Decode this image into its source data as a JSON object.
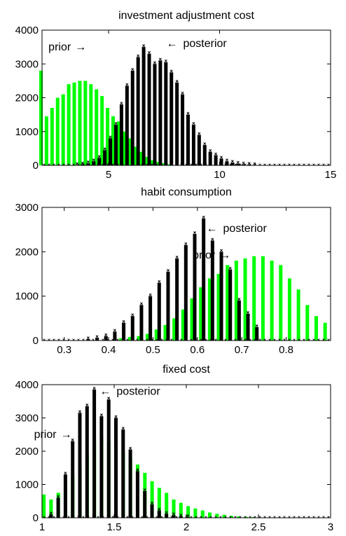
{
  "chart_data": [
    {
      "type": "bar",
      "title": "investment adjustment cost",
      "xlim": [
        2,
        15
      ],
      "ylim": [
        0,
        4000
      ],
      "xticks": [
        "5",
        "10",
        "15"
      ],
      "xtick_values": [
        5,
        10,
        15
      ],
      "yticks": [
        "0",
        "1000",
        "2000",
        "3000",
        "4000"
      ],
      "ytick_values": [
        0,
        1000,
        2000,
        3000,
        4000
      ],
      "annotations": [
        {
          "text": "prior",
          "arrow": "→",
          "at": [
            3.3,
            3400
          ]
        },
        {
          "text": "posterior",
          "arrow": "←",
          "at": [
            7.6,
            3500
          ]
        }
      ],
      "series": [
        {
          "name": "prior",
          "color": "#00ff00",
          "x": [
            2.0,
            2.25,
            2.5,
            2.75,
            3.0,
            3.25,
            3.5,
            3.75,
            4.0,
            4.25,
            4.5,
            4.75,
            5.0,
            5.25,
            5.5,
            5.75,
            6.0,
            6.25,
            6.5,
            6.75,
            7.0,
            7.25,
            7.5,
            7.75,
            8.0
          ],
          "values": [
            2800,
            1450,
            1700,
            2000,
            2100,
            2400,
            2450,
            2500,
            2500,
            2400,
            2250,
            2050,
            1700,
            1450,
            1300,
            1000,
            800,
            550,
            400,
            250,
            150,
            100,
            60,
            30,
            10
          ]
        },
        {
          "name": "posterior",
          "color": "#000000",
          "x": [
            3.5,
            3.75,
            4.0,
            4.25,
            4.5,
            4.75,
            5.0,
            5.25,
            5.5,
            5.75,
            6.0,
            6.25,
            6.5,
            6.75,
            7.0,
            7.25,
            7.5,
            7.75,
            8.0,
            8.25,
            8.5,
            8.75,
            9.0,
            9.25,
            9.5,
            9.75,
            10.0,
            10.25,
            10.5,
            10.75,
            11.0,
            11.25,
            11.5
          ],
          "values": [
            10,
            30,
            60,
            120,
            220,
            450,
            800,
            1200,
            1800,
            2350,
            2800,
            3200,
            3500,
            3300,
            3000,
            3100,
            3050,
            2750,
            2450,
            2100,
            1500,
            1200,
            900,
            600,
            400,
            300,
            200,
            120,
            80,
            50,
            30,
            20,
            10
          ]
        }
      ]
    },
    {
      "type": "bar",
      "title": "habit consumption",
      "xlim": [
        0.25,
        0.9
      ],
      "ylim": [
        0,
        3000
      ],
      "xticks": [
        "0.3",
        "0.4",
        "0.5",
        "0.6",
        "0.7",
        "0.8"
      ],
      "xtick_values": [
        0.3,
        0.4,
        0.5,
        0.6,
        0.7,
        0.8
      ],
      "yticks": [
        "0",
        "1000",
        "2000",
        "3000"
      ],
      "ytick_values": [
        0,
        1000,
        2000,
        3000
      ],
      "annotations": [
        {
          "text": "posterior",
          "arrow": "←",
          "at": [
            0.62,
            2450
          ]
        },
        {
          "text": "prior",
          "arrow": "→",
          "at": [
            0.64,
            1850
          ]
        }
      ],
      "series": [
        {
          "name": "prior",
          "color": "#00ff00",
          "x": [
            0.43,
            0.45,
            0.47,
            0.49,
            0.51,
            0.53,
            0.55,
            0.57,
            0.59,
            0.61,
            0.63,
            0.65,
            0.67,
            0.69,
            0.71,
            0.73,
            0.75,
            0.77,
            0.79,
            0.81,
            0.83,
            0.85,
            0.87,
            0.89
          ],
          "values": [
            50,
            80,
            100,
            150,
            250,
            350,
            500,
            700,
            950,
            1200,
            1400,
            1500,
            1700,
            1800,
            1850,
            1900,
            1900,
            1800,
            1700,
            1400,
            1150,
            800,
            550,
            400
          ]
        },
        {
          "name": "posterior",
          "color": "#000000",
          "x": [
            0.35,
            0.37,
            0.39,
            0.41,
            0.43,
            0.45,
            0.47,
            0.49,
            0.51,
            0.53,
            0.55,
            0.57,
            0.59,
            0.61,
            0.63,
            0.65,
            0.67,
            0.69,
            0.71,
            0.73
          ],
          "values": [
            30,
            60,
            100,
            200,
            400,
            550,
            800,
            1000,
            1300,
            1550,
            1850,
            2150,
            2400,
            2750,
            2250,
            2000,
            1600,
            900,
            600,
            300
          ]
        }
      ]
    },
    {
      "type": "bar",
      "title": "fixed cost",
      "xlim": [
        1,
        3
      ],
      "ylim": [
        0,
        4000
      ],
      "xticks": [
        "1",
        "1.5",
        "2",
        "2.5",
        "3"
      ],
      "xtick_values": [
        1,
        1.5,
        2,
        2.5,
        3
      ],
      "yticks": [
        "0",
        "1000",
        "2000",
        "3000",
        "4000"
      ],
      "ytick_values": [
        0,
        1000,
        2000,
        3000,
        4000
      ],
      "annotations": [
        {
          "text": "posterior",
          "arrow": "←",
          "at": [
            1.4,
            3700
          ]
        },
        {
          "text": "prior",
          "arrow": "→",
          "at": [
            1.1,
            2400
          ]
        }
      ],
      "series": [
        {
          "name": "prior",
          "color": "#00ff00",
          "x": [
            1.02,
            1.07,
            1.12,
            1.17,
            1.22,
            1.27,
            1.32,
            1.37,
            1.42,
            1.47,
            1.52,
            1.57,
            1.62,
            1.67,
            1.72,
            1.77,
            1.82,
            1.87,
            1.92,
            1.97,
            2.02,
            2.07,
            2.12,
            2.17,
            2.22,
            2.27,
            2.32,
            2.37,
            2.42,
            2.47
          ],
          "values": [
            700,
            550,
            750,
            1000,
            1250,
            1550,
            1900,
            2300,
            2400,
            2300,
            2200,
            1950,
            1800,
            1600,
            1350,
            1100,
            900,
            750,
            550,
            450,
            350,
            280,
            220,
            160,
            120,
            90,
            60,
            40,
            30,
            20
          ]
        },
        {
          "name": "posterior",
          "color": "#000000",
          "x": [
            1.05,
            1.1,
            1.15,
            1.2,
            1.25,
            1.3,
            1.35,
            1.4,
            1.45,
            1.5,
            1.55,
            1.6,
            1.65,
            1.7,
            1.75,
            1.8,
            1.85,
            1.9,
            1.95,
            2.0
          ],
          "values": [
            100,
            600,
            1300,
            2300,
            3150,
            3350,
            3850,
            3050,
            3550,
            3000,
            2650,
            2050,
            1400,
            800,
            400,
            220,
            120,
            80,
            40,
            20
          ]
        }
      ]
    }
  ]
}
